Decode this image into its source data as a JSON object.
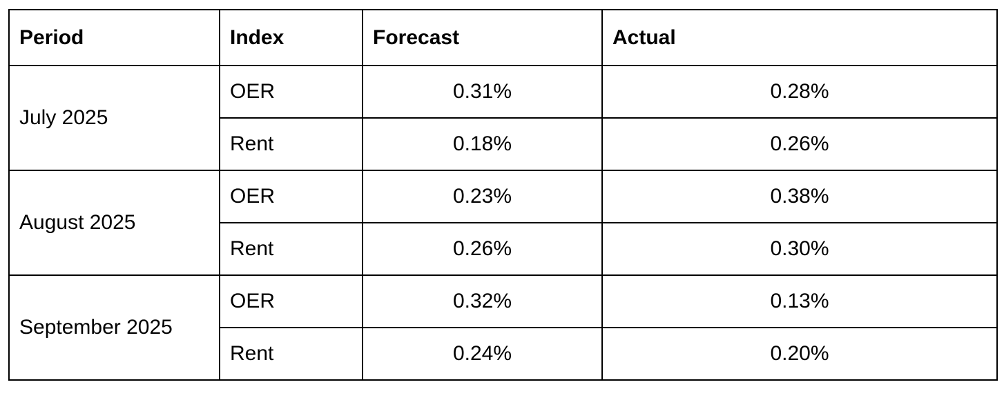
{
  "table": {
    "headers": [
      "Period",
      "Index",
      "Forecast",
      "Actual"
    ],
    "groups": [
      {
        "period": "July 2025",
        "rows": [
          {
            "index": "OER",
            "forecast": "0.31%",
            "actual": "0.28%"
          },
          {
            "index": "Rent",
            "forecast": "0.18%",
            "actual": "0.26%"
          }
        ]
      },
      {
        "period": "August 2025",
        "rows": [
          {
            "index": "OER",
            "forecast": "0.23%",
            "actual": "0.38%"
          },
          {
            "index": "Rent",
            "forecast": "0.26%",
            "actual": "0.30%"
          }
        ]
      },
      {
        "period": "September 2025",
        "rows": [
          {
            "index": "OER",
            "forecast": "0.32%",
            "actual": "0.13%"
          },
          {
            "index": "Rent",
            "forecast": "0.24%",
            "actual": "0.20%"
          }
        ]
      }
    ]
  }
}
